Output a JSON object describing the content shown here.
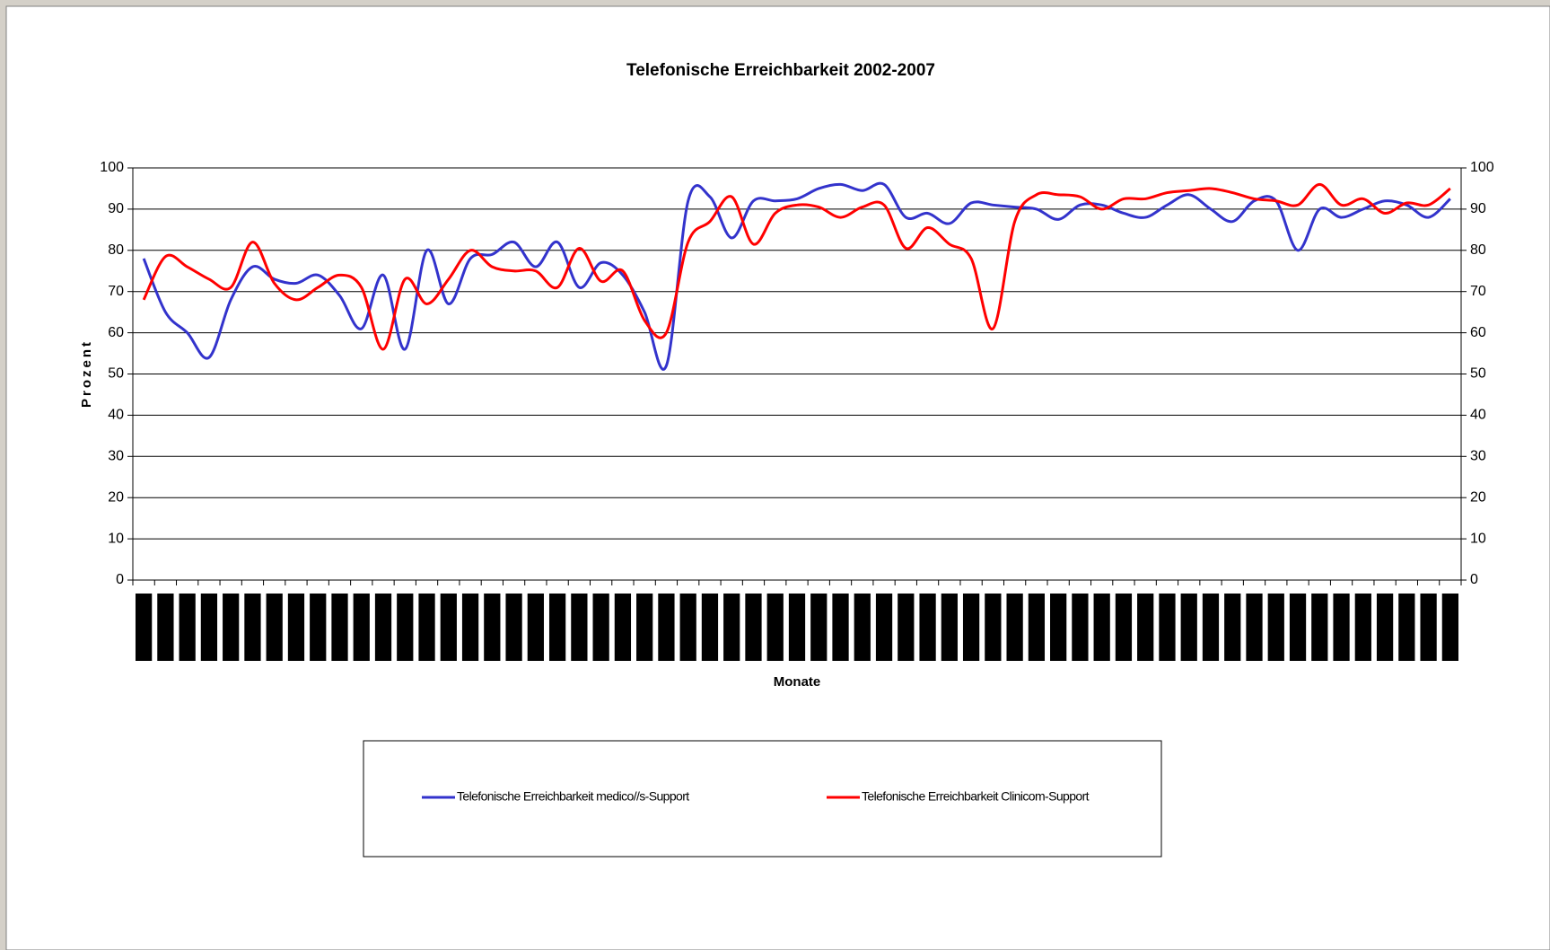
{
  "chart_data": {
    "type": "line",
    "title": "Telefonische Erreichbarkeit 2002-2007",
    "ylabel": "Prozent",
    "xlabel": "Monate",
    "categories": [
      null,
      null,
      null,
      null,
      null,
      null,
      null,
      null,
      null,
      null,
      null,
      null,
      null,
      null,
      null,
      null,
      null,
      null,
      null,
      null,
      null,
      null,
      null,
      null,
      null,
      null,
      null,
      null,
      null,
      null,
      null,
      null,
      null,
      null,
      null,
      null,
      null,
      null,
      null,
      null,
      null,
      null,
      null,
      null,
      null,
      null,
      null,
      null,
      null,
      null,
      null,
      null,
      null,
      null,
      null,
      null,
      null,
      null,
      null,
      null,
      null
    ],
    "series": [
      {
        "name": "Telefonische Erreichbarkeit medico//s-Support",
        "color": "#3333cc",
        "values": [
          78,
          65,
          60,
          54,
          68,
          76,
          73,
          72,
          74,
          69,
          61,
          74,
          56,
          80,
          67,
          78,
          79,
          82,
          76,
          82,
          71,
          77,
          74,
          65,
          52,
          92,
          93,
          83,
          92,
          92,
          92.5,
          95,
          96,
          94.5,
          96,
          88,
          89,
          86.5,
          91.5,
          91,
          90.5,
          90,
          87.5,
          91,
          91,
          89,
          88,
          91,
          93.5,
          90,
          87,
          92,
          92,
          80,
          90,
          88,
          90,
          92,
          91,
          88,
          92.5
        ]
      },
      {
        "name": "Telefonische Erreichbarkeit Clinicom-Support",
        "color": "#ff0000",
        "values": [
          68,
          78.5,
          76,
          73,
          71,
          82,
          72,
          68,
          71,
          74,
          71,
          56,
          73,
          67,
          73,
          80,
          76,
          75,
          75,
          71,
          80.5,
          72.5,
          75,
          63,
          60,
          82,
          87,
          93,
          81.5,
          89,
          91,
          90.5,
          88,
          90.5,
          91,
          80.5,
          85.5,
          81.5,
          78,
          61,
          87,
          93.5,
          93.5,
          93,
          90,
          92.5,
          92.5,
          94,
          94.5,
          95,
          94,
          92.5,
          92,
          91,
          96,
          91,
          92.5,
          89,
          91.5,
          91,
          95
        ]
      }
    ],
    "ylim": [
      0,
      100
    ],
    "yticks": [
      0,
      10,
      20,
      30,
      40,
      50,
      60,
      70,
      80,
      90,
      100
    ],
    "y2lim": [
      0,
      100
    ],
    "y2ticks": [
      0,
      10,
      20,
      30,
      40,
      50,
      60,
      70,
      80,
      90,
      100
    ],
    "grid": true
  }
}
